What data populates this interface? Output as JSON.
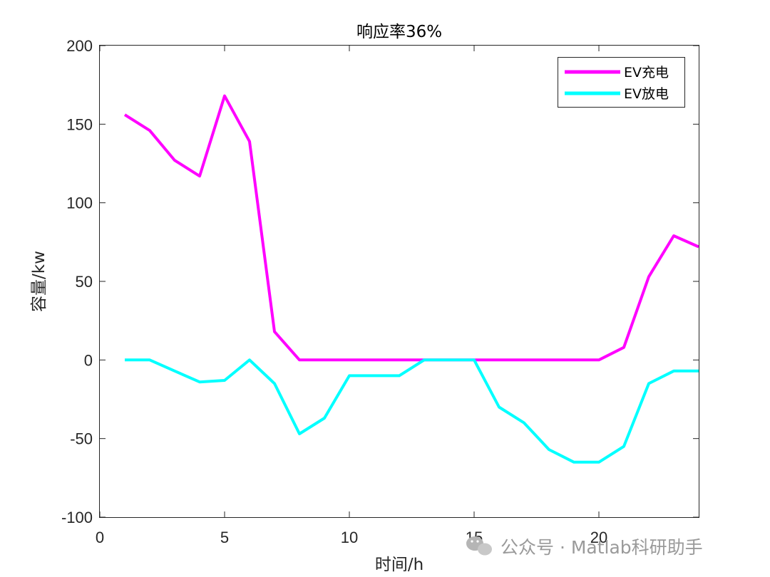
{
  "chart_data": {
    "type": "line",
    "title": "响应率36%",
    "xlabel": "时间/h",
    "ylabel": "容量/kw",
    "xlim": [
      0,
      24
    ],
    "ylim": [
      -100,
      200
    ],
    "xticks": [
      0,
      5,
      10,
      15,
      20
    ],
    "yticks": [
      -100,
      -50,
      0,
      50,
      100,
      150,
      200
    ],
    "grid": false,
    "legend_position": "top-right",
    "x": [
      1,
      2,
      3,
      4,
      5,
      6,
      7,
      8,
      9,
      10,
      11,
      12,
      13,
      14,
      15,
      16,
      17,
      18,
      19,
      20,
      21,
      22,
      23,
      24
    ],
    "series": [
      {
        "name": "EV充电",
        "color": "#ff00ff",
        "values": [
          156,
          146,
          127,
          117,
          168,
          139,
          18,
          0,
          0,
          0,
          0,
          0,
          0,
          0,
          0,
          0,
          0,
          0,
          0,
          0,
          8,
          53,
          79,
          72
        ]
      },
      {
        "name": "EV放电",
        "color": "#00ffff",
        "values": [
          0,
          0,
          -7,
          -14,
          -13,
          0,
          -15,
          -47,
          -37,
          -10,
          -10,
          -10,
          0,
          0,
          0,
          -30,
          -40,
          -57,
          -65,
          -65,
          -55,
          -15,
          -7,
          -7
        ]
      }
    ]
  },
  "watermark": {
    "text": "公众号 · Matlab科研助手",
    "icon": "wechat-icon"
  }
}
